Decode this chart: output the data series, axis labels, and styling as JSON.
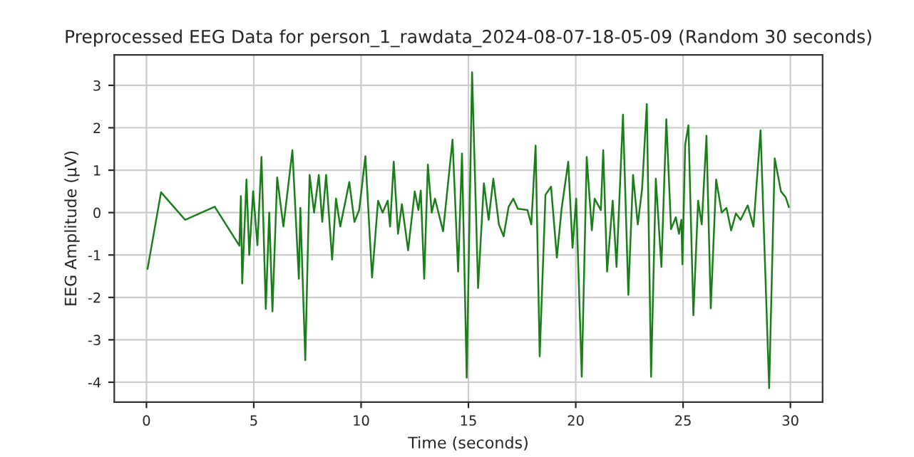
{
  "chart_data": {
    "type": "line",
    "title": "Preprocessed EEG Data for person_1_rawdata_2024-08-07-18-05-09 (Random 30 seconds)",
    "xlabel": "Time (seconds)",
    "ylabel": "EEG Amplitude (µV)",
    "series": [
      {
        "color": "#1a7f1a",
        "x": [
          0.05,
          0.68,
          1.8,
          3.18,
          4.33,
          4.4,
          4.46,
          4.66,
          4.79,
          4.97,
          5.17,
          5.36,
          5.56,
          5.72,
          5.87,
          6.09,
          6.38,
          6.8,
          7.1,
          7.17,
          7.4,
          7.6,
          7.81,
          8.03,
          8.19,
          8.37,
          8.65,
          8.83,
          9.03,
          9.45,
          9.69,
          9.91,
          10.2,
          10.51,
          10.79,
          11.0,
          11.24,
          11.35,
          11.52,
          11.72,
          11.9,
          12.19,
          12.5,
          12.67,
          12.78,
          12.94,
          13.11,
          13.29,
          13.44,
          13.82,
          14.26,
          14.52,
          14.7,
          14.92,
          15.17,
          15.45,
          15.72,
          15.94,
          16.16,
          16.42,
          16.64,
          16.87,
          17.09,
          17.3,
          17.75,
          17.93,
          18.13,
          18.32,
          18.59,
          18.85,
          19.12,
          19.34,
          19.65,
          19.85,
          20.02,
          20.28,
          20.51,
          20.75,
          20.88,
          21.17,
          21.28,
          21.46,
          21.72,
          21.9,
          22.2,
          22.45,
          22.67,
          22.89,
          23.09,
          23.31,
          23.51,
          23.73,
          23.99,
          24.22,
          24.44,
          24.66,
          24.81,
          24.92,
          24.97,
          25.1,
          25.25,
          25.48,
          25.7,
          25.87,
          26.09,
          26.29,
          26.54,
          26.8,
          27.02,
          27.24,
          27.46,
          27.68,
          28.01,
          28.28,
          28.61,
          29.01,
          29.27,
          29.56,
          29.78,
          29.93
        ],
        "values": [
          -1.33,
          0.48,
          -0.17,
          0.14,
          -0.78,
          0.39,
          -1.67,
          0.78,
          -1.0,
          0.5,
          -0.77,
          1.31,
          -2.27,
          0.0,
          -2.33,
          0.83,
          -0.33,
          1.47,
          -1.56,
          0.11,
          -3.48,
          0.89,
          0.0,
          0.89,
          -0.22,
          0.89,
          -1.11,
          0.33,
          -0.33,
          0.72,
          -0.22,
          0.06,
          1.33,
          -1.53,
          0.28,
          0.0,
          0.28,
          -0.33,
          1.2,
          -0.5,
          0.2,
          -0.89,
          0.5,
          0.06,
          0.52,
          -1.56,
          1.13,
          0.0,
          0.33,
          -0.44,
          1.72,
          -1.39,
          1.39,
          -3.89,
          3.31,
          -1.78,
          0.69,
          -0.17,
          0.8,
          -0.28,
          -0.56,
          0.13,
          0.33,
          0.09,
          0.06,
          -0.28,
          1.58,
          -3.39,
          0.42,
          0.61,
          -1.06,
          0.09,
          1.2,
          -0.83,
          0.33,
          -3.87,
          1.31,
          -0.42,
          0.33,
          0.06,
          1.47,
          -1.39,
          0.28,
          -1.28,
          2.31,
          -1.94,
          0.89,
          -0.28,
          0.56,
          2.56,
          -3.87,
          0.8,
          -1.28,
          2.2,
          -0.39,
          -0.11,
          -0.5,
          -0.17,
          -1.22,
          1.61,
          2.06,
          -2.42,
          0.28,
          -0.28,
          1.81,
          -2.26,
          0.78,
          0.0,
          0.11,
          -0.42,
          -0.02,
          -0.17,
          0.17,
          -0.33,
          1.94,
          -4.14,
          1.28,
          0.5,
          0.36,
          0.13
        ]
      }
    ],
    "xlim": [
      -1.5,
      31.5
    ],
    "ylim": [
      -4.47,
      3.72
    ],
    "xticks": [
      0,
      5,
      10,
      15,
      20,
      25,
      30
    ],
    "yticks": [
      -4,
      -3,
      -2,
      -1,
      0,
      1,
      2,
      3
    ],
    "grid": true,
    "line_style": "solid"
  }
}
